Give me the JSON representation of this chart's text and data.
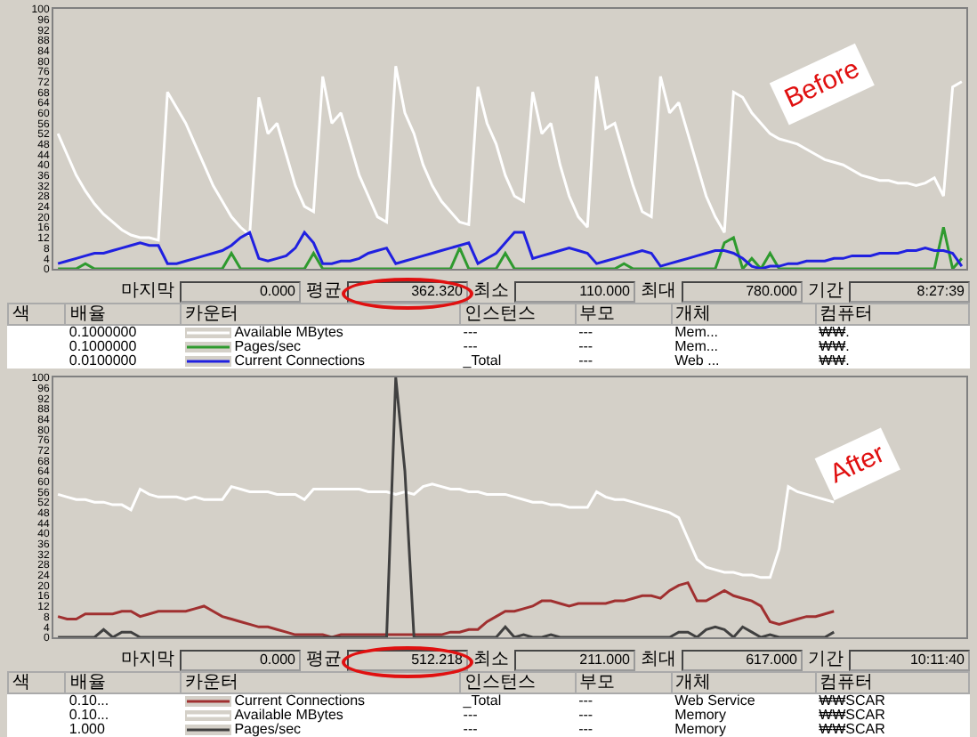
{
  "chart_data": [
    {
      "type": "line",
      "categories": [
        null,
        null,
        null,
        null,
        null,
        null,
        null,
        null,
        null,
        null,
        null,
        null,
        null,
        null,
        null,
        null,
        null,
        null,
        null,
        null,
        null,
        null,
        null,
        null,
        null,
        null,
        null,
        null,
        null,
        null,
        null,
        null,
        null,
        null,
        null,
        null,
        null,
        null,
        null,
        null,
        null,
        null,
        null,
        null,
        null,
        null,
        null,
        null,
        null,
        null,
        null,
        null,
        null,
        null,
        null,
        null,
        null,
        null,
        null,
        null,
        null,
        null,
        null,
        null,
        null,
        null,
        null,
        null,
        null,
        null,
        null,
        null,
        null,
        null,
        null,
        null,
        null,
        null,
        null,
        null,
        null,
        null,
        null,
        null,
        null,
        null,
        null,
        null,
        null,
        null,
        null,
        null,
        null,
        null,
        null,
        null,
        null,
        null,
        null,
        null
      ],
      "ylim": [
        0,
        100
      ],
      "yticks": [
        0,
        4,
        8,
        12,
        16,
        20,
        24,
        28,
        32,
        36,
        40,
        44,
        48,
        52,
        56,
        60,
        64,
        68,
        72,
        76,
        80,
        84,
        88,
        92,
        96,
        100
      ],
      "tick_labels": "y",
      "legend": "bottom",
      "annotations": [
        "Before",
        "마지막",
        "0.000",
        "평균",
        "362.320",
        "최소",
        "110.000",
        "최대",
        "780.000",
        "기간",
        "8:27:39",
        "색",
        "배율",
        "카운터",
        "인스턴스",
        "부모",
        "개체",
        "컴퓨터",
        "0.1000000",
        "---",
        "---",
        "Mem...",
        "₩₩.",
        "0.1000000",
        "---",
        "---",
        "Mem...",
        "₩₩.",
        "0.0100000",
        "_Total",
        "---",
        "Web ...",
        "₩₩."
      ],
      "series": [
        {
          "name": "Available MBytes",
          "color": "#ffffff",
          "values": [
            52,
            44,
            36,
            30,
            25,
            21,
            18,
            15,
            13,
            12,
            12,
            11,
            68,
            62,
            56,
            48,
            40,
            32,
            26,
            20,
            16,
            13,
            66,
            52,
            56,
            44,
            32,
            24,
            22,
            74,
            56,
            60,
            48,
            36,
            28,
            20,
            18,
            78,
            60,
            52,
            40,
            32,
            26,
            22,
            18,
            17,
            70,
            56,
            48,
            36,
            28,
            26,
            68,
            52,
            56,
            40,
            28,
            20,
            16,
            74,
            54,
            56,
            44,
            32,
            22,
            20,
            74,
            60,
            64,
            52,
            40,
            28,
            20,
            14,
            68,
            66,
            60,
            56,
            52,
            50,
            49,
            48,
            46,
            44,
            42,
            41,
            40,
            38,
            36,
            35,
            34,
            34,
            33,
            33,
            32,
            33,
            35,
            28,
            70,
            72
          ]
        },
        {
          "name": "Pages/sec",
          "color": "#2e9a2e",
          "values": [
            0,
            0,
            0,
            2,
            0,
            0,
            0,
            0,
            0,
            0,
            0,
            0,
            0,
            0,
            0,
            0,
            0,
            0,
            0,
            6,
            0,
            0,
            0,
            0,
            0,
            0,
            0,
            0,
            6,
            0,
            0,
            0,
            0,
            0,
            0,
            0,
            0,
            0,
            0,
            0,
            0,
            0,
            0,
            0,
            8,
            0,
            0,
            0,
            0,
            6,
            0,
            0,
            0,
            0,
            0,
            0,
            0,
            0,
            0,
            0,
            0,
            0,
            2,
            0,
            0,
            0,
            0,
            0,
            0,
            0,
            0,
            0,
            0,
            10,
            12,
            0,
            4,
            0,
            6,
            0,
            0,
            0,
            0,
            0,
            0,
            0,
            0,
            0,
            0,
            0,
            0,
            0,
            0,
            0,
            0,
            0,
            0,
            16,
            0,
            4
          ]
        },
        {
          "name": "Current Connections",
          "color": "#2020e0",
          "values": [
            2,
            3,
            4,
            5,
            6,
            6,
            7,
            8,
            9,
            10,
            9,
            9,
            2,
            2,
            3,
            4,
            5,
            6,
            7,
            9,
            12,
            14,
            4,
            3,
            4,
            5,
            8,
            14,
            10,
            2,
            2,
            3,
            3,
            4,
            6,
            7,
            8,
            2,
            3,
            4,
            5,
            6,
            7,
            8,
            9,
            10,
            2,
            4,
            6,
            10,
            14,
            14,
            4,
            5,
            6,
            7,
            8,
            7,
            6,
            2,
            3,
            4,
            5,
            6,
            7,
            6,
            1,
            2,
            3,
            4,
            5,
            6,
            7,
            7,
            6,
            4,
            1,
            0,
            1,
            1,
            2,
            2,
            3,
            3,
            3,
            4,
            4,
            5,
            5,
            5,
            6,
            6,
            6,
            7,
            7,
            8,
            7,
            7,
            6,
            1
          ]
        }
      ]
    },
    {
      "type": "line",
      "categories": [
        null,
        null,
        null,
        null,
        null,
        null,
        null,
        null,
        null,
        null,
        null,
        null,
        null,
        null,
        null,
        null,
        null,
        null,
        null,
        null,
        null,
        null,
        null,
        null,
        null,
        null,
        null,
        null,
        null,
        null,
        null,
        null,
        null,
        null,
        null,
        null,
        null,
        null,
        null,
        null,
        null,
        null,
        null,
        null,
        null,
        null,
        null,
        null,
        null,
        null,
        null,
        null,
        null,
        null,
        null,
        null,
        null,
        null,
        null,
        null,
        null,
        null,
        null,
        null,
        null,
        null,
        null,
        null,
        null,
        null,
        null,
        null,
        null,
        null,
        null,
        null,
        null,
        null,
        null,
        null,
        null,
        null,
        null,
        null,
        null,
        null,
        null,
        null,
        null,
        null,
        null,
        null,
        null,
        null,
        null,
        null,
        null,
        null,
        null,
        null
      ],
      "ylim": [
        0,
        100
      ],
      "yticks": [
        0,
        4,
        8,
        12,
        16,
        20,
        24,
        28,
        32,
        36,
        40,
        44,
        48,
        52,
        56,
        60,
        64,
        68,
        72,
        76,
        80,
        84,
        88,
        92,
        96,
        100
      ],
      "tick_labels": "y",
      "legend": "bottom",
      "annotations": [
        "After",
        "마지막",
        "0.000",
        "평균",
        "512.218",
        "최소",
        "211.000",
        "최대",
        "617.000",
        "기간",
        "10:11:40",
        "색",
        "배율",
        "카운터",
        "인스턴스",
        "부모",
        "개체",
        "컴퓨터",
        "0.10...",
        "_Total",
        "---",
        "Web Service",
        "₩₩SCAR",
        "0.10...",
        "---",
        "---",
        "Memory",
        "₩₩SCAR",
        "1.000",
        "---",
        "---",
        "Memory",
        "₩₩SCAR"
      ],
      "series": [
        {
          "name": "Current Connections",
          "color": "#a03030",
          "values": [
            8,
            7,
            7,
            9,
            9,
            9,
            9,
            10,
            10,
            8,
            9,
            10,
            10,
            10,
            10,
            11,
            12,
            10,
            8,
            7,
            6,
            5,
            4,
            4,
            3,
            2,
            1,
            1,
            1,
            1,
            0,
            1,
            1,
            1,
            1,
            1,
            1,
            1,
            1,
            1,
            1,
            1,
            1,
            2,
            2,
            3,
            3,
            6,
            8,
            10,
            10,
            11,
            12,
            14,
            14,
            13,
            12,
            13,
            13,
            13,
            13,
            14,
            14,
            15,
            16,
            16,
            15,
            18,
            20,
            21,
            14,
            14,
            16,
            18,
            16,
            15,
            14,
            12,
            6,
            5,
            6,
            7,
            8,
            8,
            9,
            10,
            null,
            null,
            null,
            null,
            null,
            null,
            null,
            null,
            null,
            null,
            null,
            null,
            null,
            null
          ]
        },
        {
          "name": "Available MBytes",
          "color": "#ffffff",
          "values": [
            55,
            54,
            53,
            53,
            52,
            52,
            51,
            51,
            49,
            57,
            55,
            54,
            54,
            54,
            53,
            54,
            53,
            53,
            53,
            58,
            57,
            56,
            56,
            56,
            55,
            55,
            55,
            53,
            57,
            57,
            57,
            57,
            57,
            57,
            56,
            56,
            56,
            55,
            56,
            55,
            58,
            59,
            58,
            57,
            57,
            56,
            56,
            55,
            55,
            55,
            54,
            53,
            52,
            52,
            51,
            51,
            50,
            50,
            50,
            56,
            54,
            53,
            53,
            52,
            51,
            50,
            49,
            48,
            46,
            38,
            30,
            27,
            26,
            25,
            25,
            24,
            24,
            23,
            23,
            34,
            58,
            56,
            55,
            54,
            53,
            52,
            null,
            null,
            null,
            null,
            null,
            null,
            null,
            null,
            null,
            null,
            null,
            null,
            null,
            null
          ]
        },
        {
          "name": "Pages/sec",
          "color": "#404040",
          "values": [
            0,
            0,
            0,
            0,
            0,
            3,
            0,
            2,
            2,
            0,
            0,
            0,
            0,
            0,
            0,
            0,
            0,
            0,
            0,
            0,
            0,
            0,
            0,
            0,
            0,
            0,
            0,
            0,
            0,
            0,
            0,
            0,
            0,
            0,
            0,
            0,
            0,
            100,
            64,
            0,
            0,
            0,
            0,
            0,
            0,
            0,
            0,
            0,
            0,
            4,
            0,
            1,
            0,
            0,
            1,
            0,
            0,
            0,
            0,
            0,
            0,
            0,
            0,
            0,
            0,
            0,
            0,
            0,
            2,
            2,
            0,
            3,
            4,
            3,
            0,
            4,
            2,
            0,
            1,
            0,
            0,
            0,
            0,
            0,
            0,
            2,
            null,
            null,
            null,
            null,
            null,
            null,
            null,
            null,
            null,
            null,
            null,
            null,
            null,
            null
          ]
        }
      ]
    }
  ]
}
